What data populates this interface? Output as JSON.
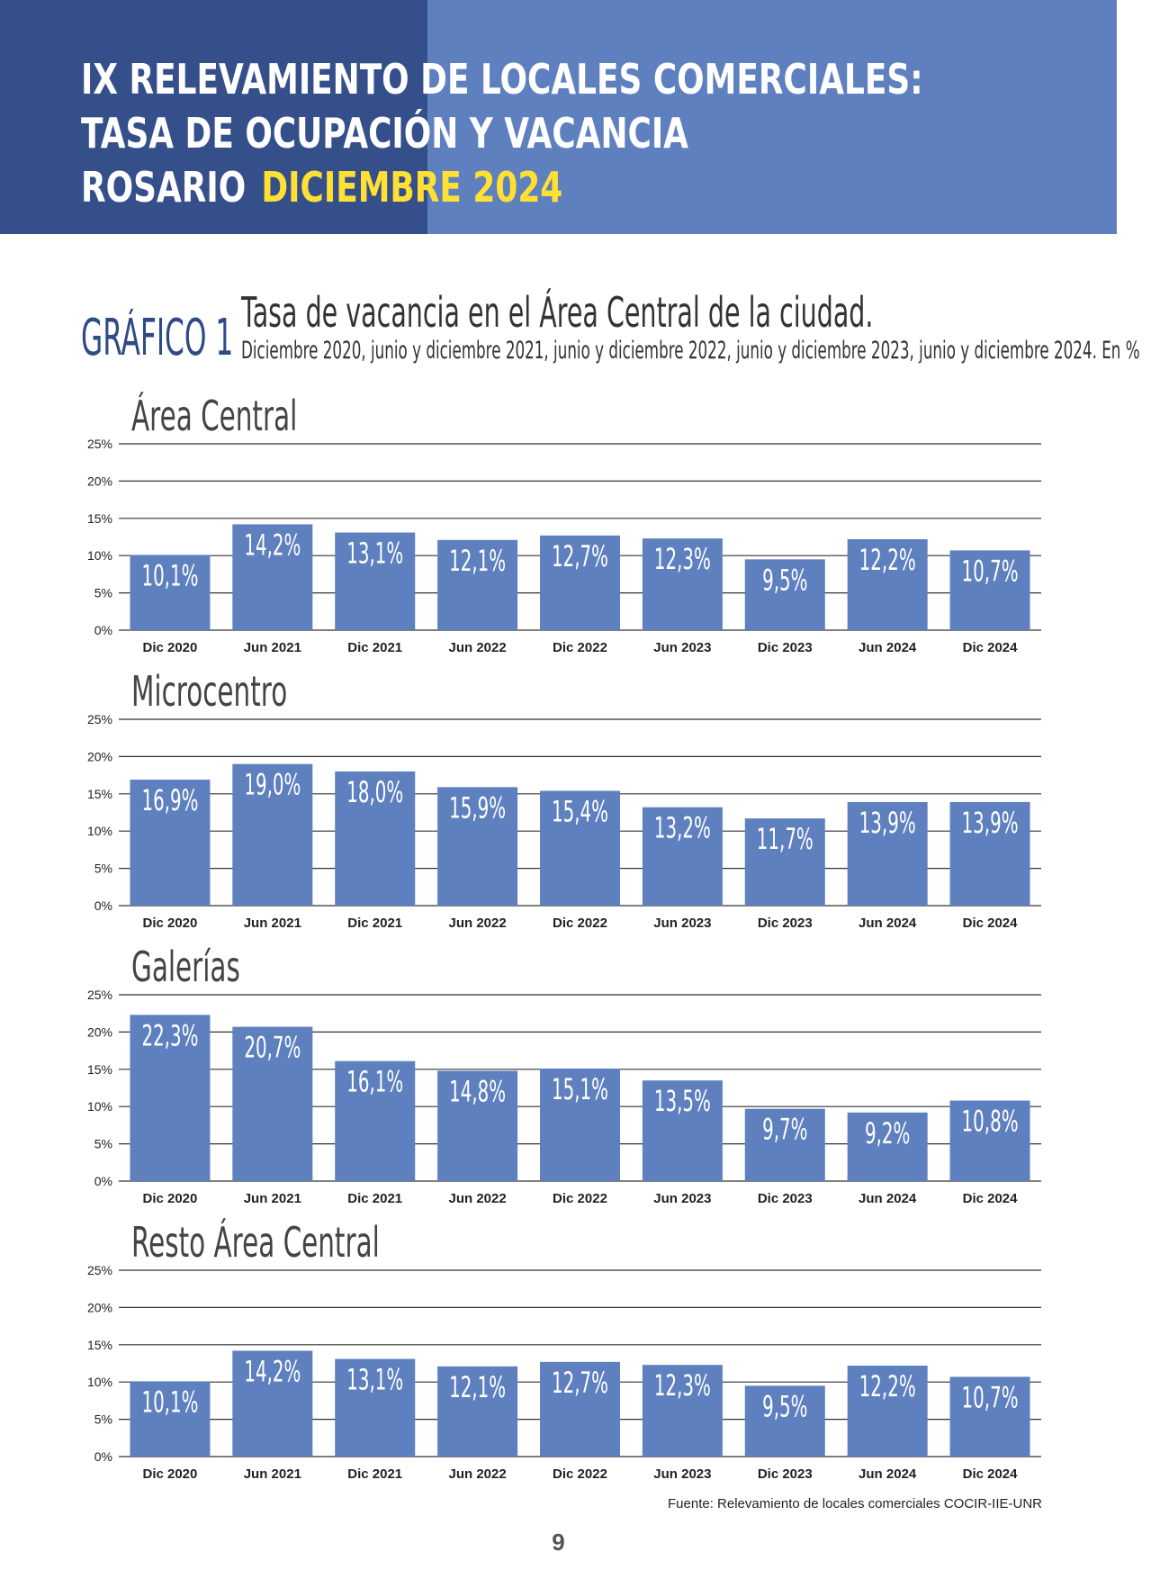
{
  "header": {
    "line1": "IX RELEVAMIENTO DE LOCALES COMERCIALES:",
    "line2": "TASA DE OCUPACIÓN Y VACANCIA",
    "line3_city": "ROSARIO",
    "line3_date": "DICIEMBRE 2024"
  },
  "grafico": {
    "label": "GRÁFICO 1",
    "title": "Tasa de vacancia en el Área Central de la ciudad.",
    "subtitle": "Diciembre 2020, junio y diciembre 2021, junio y diciembre 2022, junio y diciembre 2023, junio y diciembre 2024. En %"
  },
  "colors": {
    "bar": "#5f80bf",
    "header_dark": "#344f8a",
    "header_light": "#5f80bf",
    "highlight": "#ffe033"
  },
  "chart_data": [
    {
      "type": "bar",
      "title": "Área Central",
      "categories": [
        "Dic 2020",
        "Jun 2021",
        "Dic 2021",
        "Jun 2022",
        "Dic 2022",
        "Jun 2023",
        "Dic 2023",
        "Jun 2024",
        "Dic 2024"
      ],
      "values": [
        10.1,
        14.2,
        13.1,
        12.1,
        12.7,
        12.3,
        9.5,
        12.2,
        10.7
      ],
      "data_labels": [
        "10,1%",
        "14,2%",
        "13,1%",
        "12,1%",
        "12,7%",
        "12,3%",
        "9,5%",
        "12,2%",
        "10,7%"
      ],
      "ylim": [
        0,
        25
      ],
      "yticks": [
        "0%",
        "5%",
        "10%",
        "15%",
        "20%",
        "25%"
      ],
      "grid": true
    },
    {
      "type": "bar",
      "title": "Microcentro",
      "categories": [
        "Dic 2020",
        "Jun 2021",
        "Dic 2021",
        "Jun 2022",
        "Dic 2022",
        "Jun 2023",
        "Dic 2023",
        "Jun 2024",
        "Dic 2024"
      ],
      "values": [
        16.9,
        19.0,
        18.0,
        15.9,
        15.4,
        13.2,
        11.7,
        13.9,
        13.9
      ],
      "data_labels": [
        "16,9%",
        "19,0%",
        "18,0%",
        "15,9%",
        "15,4%",
        "13,2%",
        "11,7%",
        "13,9%",
        "13,9%"
      ],
      "ylim": [
        0,
        25
      ],
      "yticks": [
        "0%",
        "5%",
        "10%",
        "15%",
        "20%",
        "25%"
      ],
      "grid": true
    },
    {
      "type": "bar",
      "title": "Galerías",
      "categories": [
        "Dic 2020",
        "Jun 2021",
        "Dic 2021",
        "Jun 2022",
        "Dic 2022",
        "Jun 2023",
        "Dic 2023",
        "Jun 2024",
        "Dic 2024"
      ],
      "values": [
        22.3,
        20.7,
        16.1,
        14.8,
        15.1,
        13.5,
        9.7,
        9.2,
        10.8
      ],
      "data_labels": [
        "22,3%",
        "20,7%",
        "16,1%",
        "14,8%",
        "15,1%",
        "13,5%",
        "9,7%",
        "9,2%",
        "10,8%"
      ],
      "ylim": [
        0,
        25
      ],
      "yticks": [
        "0%",
        "5%",
        "10%",
        "15%",
        "20%",
        "25%"
      ],
      "grid": true
    },
    {
      "type": "bar",
      "title": "Resto Área Central",
      "categories": [
        "Dic 2020",
        "Jun 2021",
        "Dic 2021",
        "Jun 2022",
        "Dic 2022",
        "Jun 2023",
        "Dic 2023",
        "Jun 2024",
        "Dic 2024"
      ],
      "values": [
        10.1,
        14.2,
        13.1,
        12.1,
        12.7,
        12.3,
        9.5,
        12.2,
        10.7
      ],
      "data_labels": [
        "10,1%",
        "14,2%",
        "13,1%",
        "12,1%",
        "12,7%",
        "12,3%",
        "9,5%",
        "12,2%",
        "10,7%"
      ],
      "ylim": [
        0,
        25
      ],
      "yticks": [
        "0%",
        "5%",
        "10%",
        "15%",
        "20%",
        "25%"
      ],
      "grid": true
    }
  ],
  "source": "Fuente: Relevamiento de locales comerciales COCIR-IIE-UNR",
  "page_number": "9"
}
